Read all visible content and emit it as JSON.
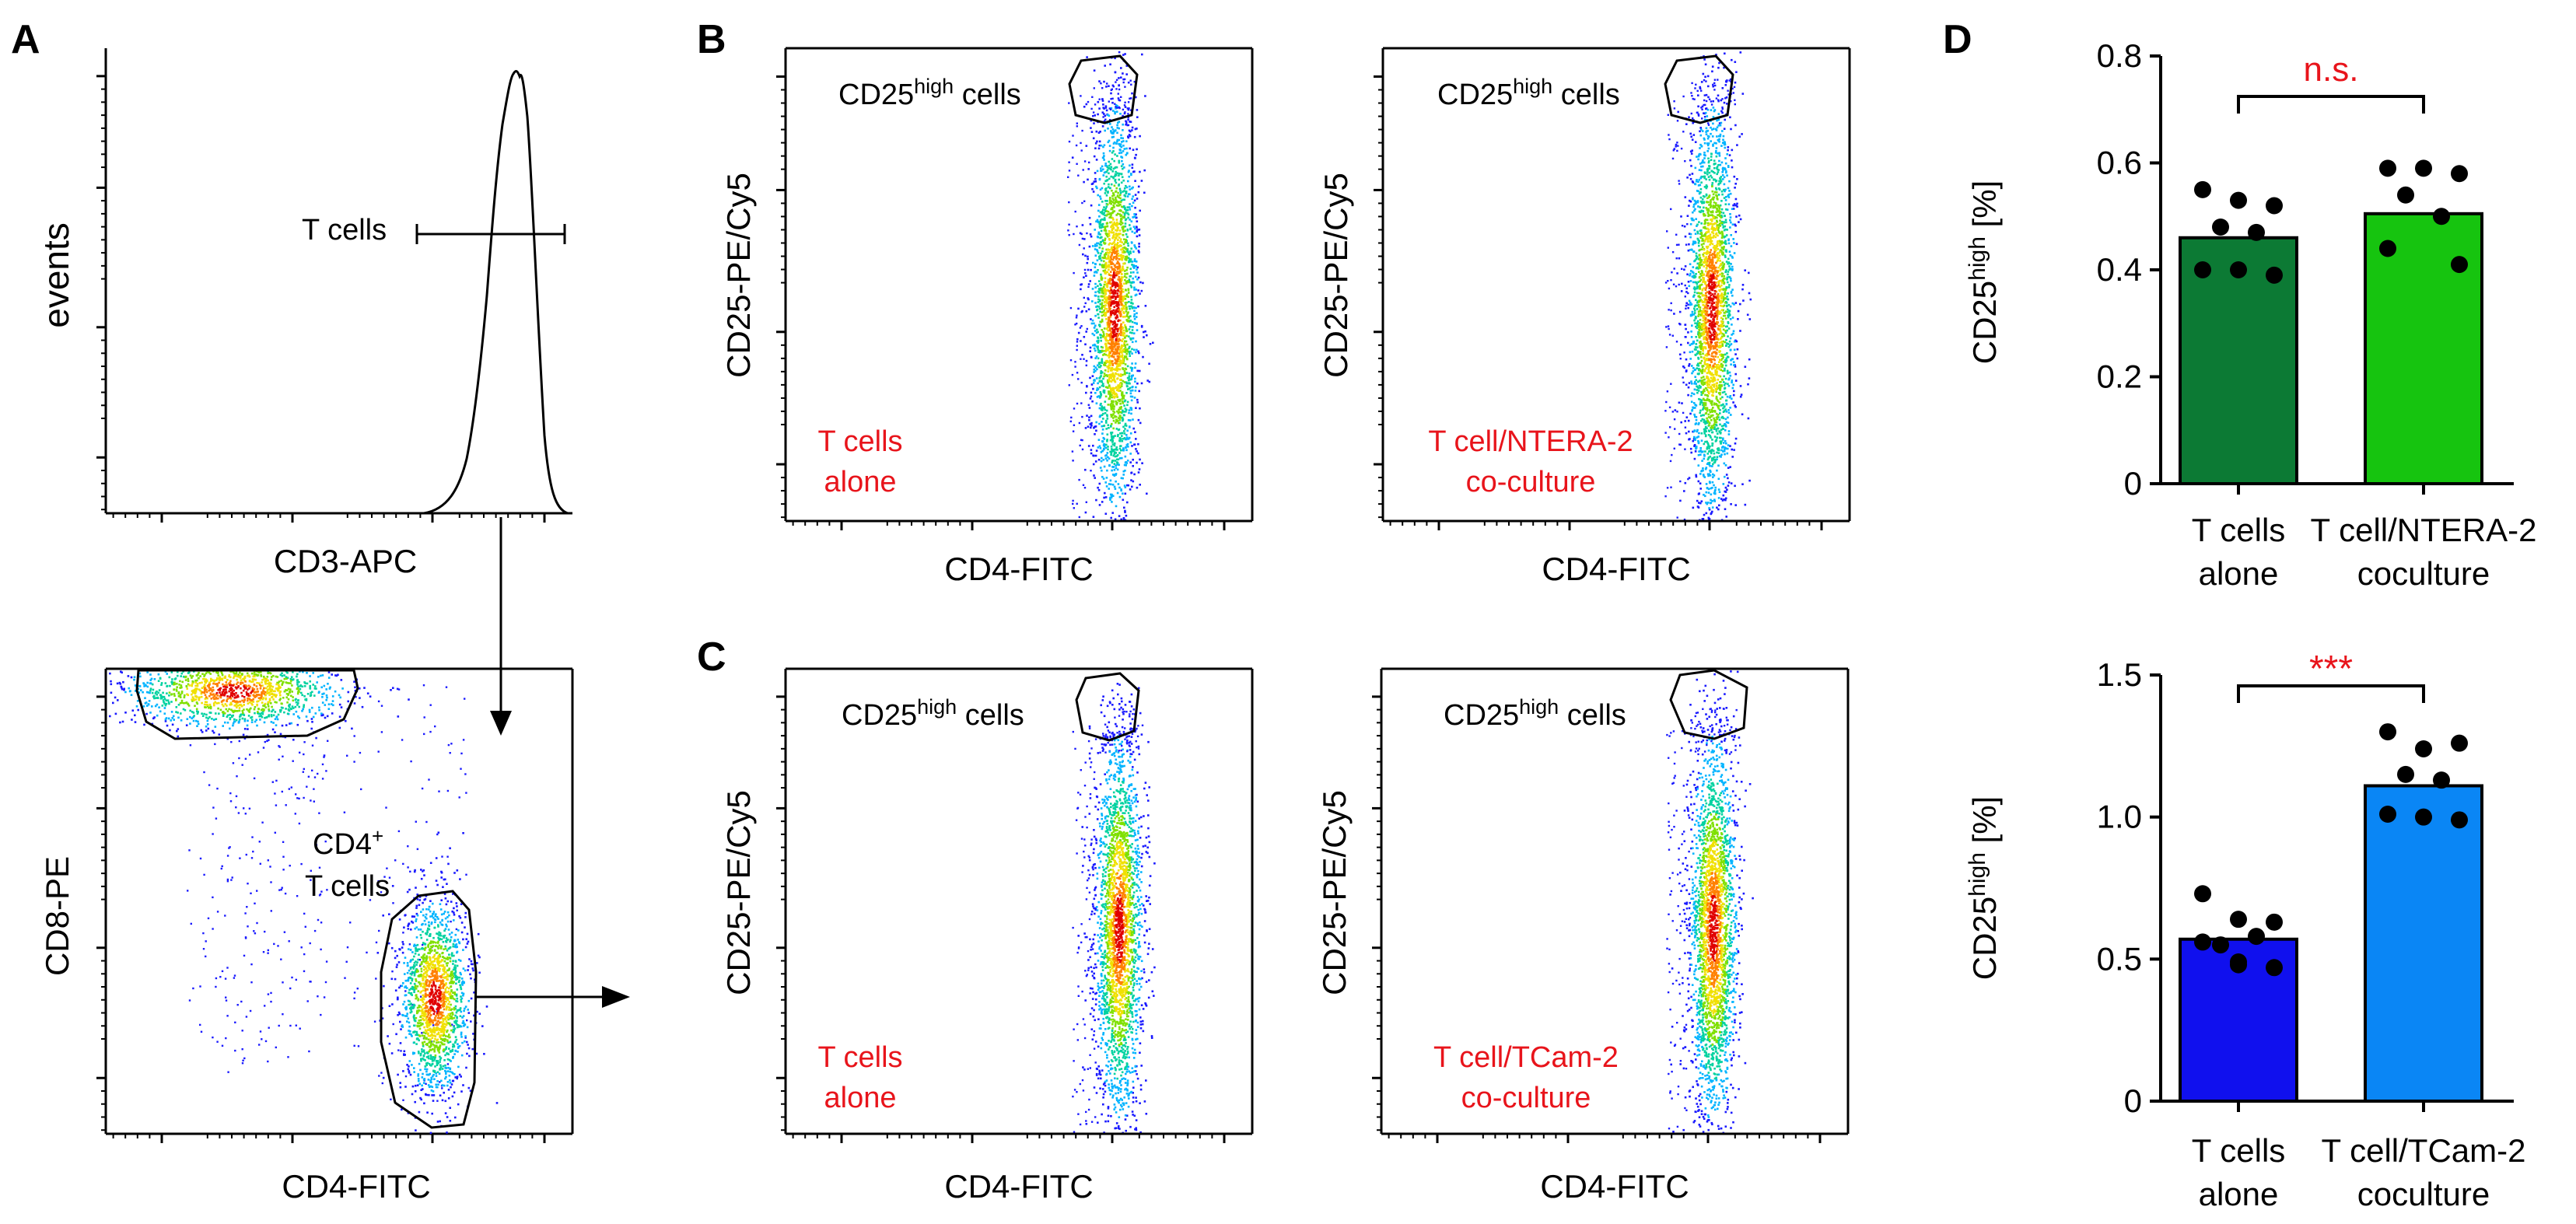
{
  "colors": {
    "black": "#000000",
    "red": "#e8141b",
    "bar_dark_green": "#0c7a34",
    "bar_light_green": "#16c40f",
    "bar_blue": "#1010ee",
    "bar_light_blue": "#0a86f5",
    "density_palette": [
      "#1a1aff",
      "#00b4ff",
      "#00d2a0",
      "#7fe000",
      "#f0e000",
      "#ff8000",
      "#e00000"
    ]
  },
  "panels": {
    "A": {
      "letter": "A",
      "histogram": {
        "xlabel": "CD3-APC",
        "ylabel": "events",
        "gate_label": "T cells"
      },
      "dotplot": {
        "xlabel": "CD4-FITC",
        "ylabel": "CD8-PE",
        "gate_label_line1": "CD4",
        "gate_label_sup": "+",
        "gate_label_line2": "T cells"
      }
    },
    "B": {
      "letter": "B",
      "plots": [
        {
          "xlabel": "CD4-FITC",
          "ylabel": "CD25-PE/Cy5",
          "gate_main": "CD25",
          "gate_sup": "high",
          "gate_suffix": " cells",
          "condition_line1": "T cells",
          "condition_line2": "alone"
        },
        {
          "xlabel": "CD4-FITC",
          "ylabel": "CD25-PE/Cy5",
          "gate_main": "CD25",
          "gate_sup": "high",
          "gate_suffix": " cells",
          "condition_line1": "T cell/NTERA-2",
          "condition_line2": "co-culture"
        }
      ]
    },
    "C": {
      "letter": "C",
      "plots": [
        {
          "xlabel": "CD4-FITC",
          "ylabel": "CD25-PE/Cy5",
          "gate_main": "CD25",
          "gate_sup": "high",
          "gate_suffix": " cells",
          "condition_line1": "T cells",
          "condition_line2": "alone"
        },
        {
          "xlabel": "CD4-FITC",
          "ylabel": "CD25-PE/Cy5",
          "gate_main": "CD25",
          "gate_sup": "high",
          "gate_suffix": " cells",
          "condition_line1": "T cell/TCam-2",
          "condition_line2": "co-culture"
        }
      ]
    },
    "D": {
      "letter": "D"
    }
  },
  "chart_data": [
    {
      "type": "bar",
      "ylabel_main": "CD25",
      "ylabel_sup": "high",
      "ylabel_suffix": " [%]",
      "ylim": [
        0,
        0.8
      ],
      "yticks": [
        0,
        0.2,
        0.4,
        0.6,
        0.8
      ],
      "ytick_labels": [
        "0",
        "0.2",
        "0.4",
        "0.6",
        "0.8"
      ],
      "categories": [
        {
          "line1": "T cells",
          "line2": "alone",
          "mean": 0.46,
          "color": "#0c7a34",
          "points": [
            0.55,
            0.53,
            0.52,
            0.48,
            0.47,
            0.4,
            0.39,
            0.4
          ]
        },
        {
          "line1": "T cell/NTERA-2",
          "line2": "coculture",
          "mean": 0.505,
          "color": "#16c40f",
          "points": [
            0.59,
            0.59,
            0.58,
            0.54,
            0.5,
            0.44,
            0.41
          ]
        }
      ],
      "significance": "n.s."
    },
    {
      "type": "bar",
      "ylabel_main": "CD25",
      "ylabel_sup": "high",
      "ylabel_suffix": " [%]",
      "ylim": [
        0,
        1.5
      ],
      "yticks": [
        0,
        0.5,
        1.0,
        1.5
      ],
      "ytick_labels": [
        "0",
        "0.5",
        "1.0",
        "1.5"
      ],
      "categories": [
        {
          "line1": "T cells",
          "line2": "alone",
          "mean": 0.57,
          "color": "#1010ee",
          "points": [
            0.73,
            0.64,
            0.63,
            0.55,
            0.58,
            0.56,
            0.47,
            0.48,
            0.49
          ]
        },
        {
          "line1": "T cell/TCam-2",
          "line2": "coculture",
          "mean": 1.11,
          "color": "#0a86f5",
          "points": [
            1.3,
            1.24,
            1.26,
            1.15,
            1.13,
            1.01,
            0.99,
            1.0
          ]
        }
      ],
      "significance": "***"
    }
  ]
}
